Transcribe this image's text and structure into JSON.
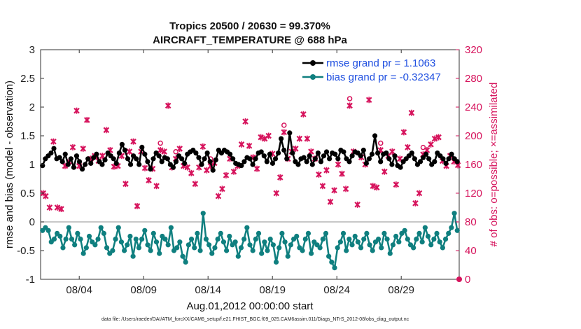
{
  "chart_data": {
    "type": "line",
    "title_line1": "Tropics 20500 / 20630 = 99.370%",
    "title_line2": "AIRCRAFT_TEMPERATURE @ 688 hPa",
    "xlabel": "Aug.01,2012 00:00:00 start",
    "ylabel_left": "rmse and bias (model - observation)",
    "ylabel_right": "# of obs: o=possible; ×=assimilated",
    "xlim": [
      0,
      32.5
    ],
    "ylim_left": [
      -1,
      3
    ],
    "ylim_right": [
      0,
      320
    ],
    "x_ticks": [
      {
        "x": 3,
        "label": "08/04"
      },
      {
        "x": 8,
        "label": "08/09"
      },
      {
        "x": 13,
        "label": "08/14"
      },
      {
        "x": 18,
        "label": "08/19"
      },
      {
        "x": 23,
        "label": "08/24"
      },
      {
        "x": 28,
        "label": "08/29"
      }
    ],
    "y_ticks_left": [
      "-1",
      "-0.5",
      "0",
      "0.5",
      "1",
      "1.5",
      "2",
      "2.5",
      "3"
    ],
    "y_ticks_right": [
      "0",
      "40",
      "80",
      "120",
      "160",
      "200",
      "240",
      "280",
      "320"
    ],
    "legend": [
      {
        "name": "rmse grand pr = 1.1063",
        "color": "#000000"
      },
      {
        "name": "bias grand pr = -0.32347",
        "color": "#0f7f7f"
      }
    ],
    "colors": {
      "rmse": "#000000",
      "bias": "#0f7f7f",
      "obs": "#d6135c",
      "zero_line": "#b5b5b5"
    },
    "rmse": [
      0.98,
      1.1,
      1.15,
      1.2,
      1.28,
      1.1,
      1.12,
      1.05,
      1.18,
      1.0,
      1.1,
      0.95,
      1.15,
      1.05,
      0.92,
      1.0,
      1.1,
      1.02,
      1.12,
      1.18,
      1.05,
      1.0,
      1.08,
      1.2,
      1.15,
      1.1,
      1.02,
      1.2,
      1.35,
      1.25,
      1.1,
      1.0,
      1.15,
      1.1,
      1.0,
      1.3,
      1.18,
      1.05,
      0.92,
      1.1,
      1.2,
      1.15,
      1.05,
      1.12,
      1.1,
      1.0,
      0.95,
      1.05,
      1.15,
      1.1,
      1.02,
      1.18,
      1.22,
      1.25,
      1.2,
      1.12,
      1.0,
      1.1,
      1.2,
      1.05,
      0.9,
      1.08,
      1.25,
      1.2,
      1.25,
      1.22,
      1.18,
      1.1,
      1.02,
      1.0,
      0.98,
      1.05,
      1.12,
      1.1,
      1.0,
      1.1,
      1.2,
      1.22,
      1.15,
      1.05,
      1.18,
      1.02,
      1.1,
      1.2,
      1.45,
      1.25,
      1.1,
      1.55,
      1.2,
      1.05,
      1.0,
      1.1,
      1.12,
      1.05,
      1.15,
      1.0,
      1.1,
      1.2,
      1.05,
      1.15,
      1.22,
      1.1,
      1.2,
      1.18,
      1.1,
      1.25,
      1.22,
      1.1,
      1.05,
      1.15,
      1.22,
      1.2,
      1.15,
      1.25,
      1.02,
      1.1,
      1.18,
      1.5,
      1.2,
      1.05,
      1.18,
      1.2,
      1.1,
      1.0,
      1.15,
      0.98,
      0.95,
      1.05,
      1.1,
      1.15,
      1.2,
      1.1,
      1.0,
      1.05,
      1.12,
      1.18,
      1.1,
      1.0,
      1.05,
      1.2,
      1.15,
      1.1,
      1.02,
      1.1,
      1.18,
      1.1,
      1.05
    ],
    "bias": [
      -0.15,
      -0.1,
      -0.15,
      -0.35,
      -0.3,
      -0.2,
      -0.25,
      -0.45,
      -0.3,
      -0.1,
      -0.3,
      -0.4,
      -0.2,
      -0.3,
      -0.55,
      -0.45,
      -0.25,
      -0.35,
      -0.4,
      -0.3,
      -0.1,
      -0.2,
      -0.45,
      -0.55,
      -0.5,
      -0.3,
      -0.1,
      -0.35,
      -0.5,
      -0.4,
      -0.25,
      -0.6,
      -0.3,
      -0.45,
      -0.3,
      -0.15,
      -0.4,
      -0.5,
      -0.2,
      -0.35,
      -0.55,
      -0.25,
      -0.3,
      -0.4,
      -0.1,
      -0.5,
      -0.45,
      -0.35,
      -0.6,
      -0.7,
      -0.4,
      -0.3,
      -0.45,
      -0.2,
      -0.5,
      0.15,
      -0.3,
      -0.4,
      -0.55,
      -0.45,
      -0.3,
      -0.2,
      -0.35,
      -0.5,
      -0.25,
      -0.4,
      -0.35,
      -0.6,
      -0.45,
      -0.3,
      -0.1,
      -0.4,
      -0.5,
      -0.3,
      -0.2,
      -0.55,
      -0.35,
      -0.5,
      -0.3,
      -0.4,
      -0.7,
      -0.45,
      -0.2,
      -0.35,
      -0.6,
      -0.4,
      -0.3,
      -0.25,
      -0.45,
      -0.5,
      -0.3,
      -0.2,
      -0.55,
      -0.35,
      -0.4,
      -0.45,
      -0.3,
      -0.2,
      -0.6,
      -0.7,
      -0.8,
      -0.45,
      -0.35,
      -0.2,
      -0.5,
      -0.3,
      -0.4,
      -0.25,
      -0.35,
      -0.45,
      -0.3,
      -0.2,
      -0.4,
      -0.5,
      -0.35,
      -0.3,
      -0.45,
      -0.2,
      -0.3,
      -0.55,
      -0.4,
      -0.25,
      -0.35,
      -0.2,
      -0.15,
      -0.3,
      -0.4,
      -0.45,
      -0.3,
      -0.2,
      -0.35,
      -0.1,
      -0.25,
      -0.4,
      -0.3,
      -0.2,
      -0.35,
      -0.45,
      -0.3,
      -0.2,
      -0.1,
      0.15,
      -0.15
    ],
    "obs_assimilated": [
      [
        0.2,
        120
      ],
      [
        0.4,
        116
      ],
      [
        0.7,
        100
      ],
      [
        1.0,
        192
      ],
      [
        1.3,
        100
      ],
      [
        1.6,
        98
      ],
      [
        1.9,
        158
      ],
      [
        2.2,
        164
      ],
      [
        2.5,
        184
      ],
      [
        2.8,
        235
      ],
      [
        3.0,
        158
      ],
      [
        3.3,
        182
      ],
      [
        3.6,
        222
      ],
      [
        3.9,
        168
      ],
      [
        4.2,
        172
      ],
      [
        4.5,
        165
      ],
      [
        4.8,
        172
      ],
      [
        5.1,
        208
      ],
      [
        5.4,
        180
      ],
      [
        5.7,
        157
      ],
      [
        6.0,
        158
      ],
      [
        6.3,
        172
      ],
      [
        6.6,
        133
      ],
      [
        6.9,
        178
      ],
      [
        7.2,
        192
      ],
      [
        7.5,
        102
      ],
      [
        7.8,
        178
      ],
      [
        8.1,
        155
      ],
      [
        8.4,
        138
      ],
      [
        8.7,
        154
      ],
      [
        9.0,
        130
      ],
      [
        9.3,
        180
      ],
      [
        9.6,
        178
      ],
      [
        9.9,
        242
      ],
      [
        10.2,
        156
      ],
      [
        10.5,
        168
      ],
      [
        10.8,
        182
      ],
      [
        11.1,
        158
      ],
      [
        11.4,
        156
      ],
      [
        11.7,
        148
      ],
      [
        12.0,
        133
      ],
      [
        12.3,
        156
      ],
      [
        12.6,
        185
      ],
      [
        12.9,
        152
      ],
      [
        13.2,
        158
      ],
      [
        13.5,
        162
      ],
      [
        13.8,
        116
      ],
      [
        14.1,
        126
      ],
      [
        14.4,
        145
      ],
      [
        14.7,
        168
      ],
      [
        15.0,
        150
      ],
      [
        15.3,
        158
      ],
      [
        15.6,
        188
      ],
      [
        15.9,
        220
      ],
      [
        16.2,
        186
      ],
      [
        16.5,
        170
      ],
      [
        16.8,
        154
      ],
      [
        17.1,
        198
      ],
      [
        17.4,
        196
      ],
      [
        17.7,
        200
      ],
      [
        18.0,
        175
      ],
      [
        18.3,
        120
      ],
      [
        18.6,
        142
      ],
      [
        18.9,
        205
      ],
      [
        19.2,
        168
      ],
      [
        19.5,
        178
      ],
      [
        19.8,
        182
      ],
      [
        20.1,
        196
      ],
      [
        20.4,
        230
      ],
      [
        20.7,
        196
      ],
      [
        21.0,
        178
      ],
      [
        21.3,
        168
      ],
      [
        21.6,
        146
      ],
      [
        21.9,
        130
      ],
      [
        22.2,
        152
      ],
      [
        22.5,
        108
      ],
      [
        22.8,
        124
      ],
      [
        23.1,
        160
      ],
      [
        23.4,
        147
      ],
      [
        23.7,
        126
      ],
      [
        24.0,
        242
      ],
      [
        24.3,
        178
      ],
      [
        24.6,
        104
      ],
      [
        24.9,
        170
      ],
      [
        25.2,
        160
      ],
      [
        25.5,
        250
      ],
      [
        25.8,
        130
      ],
      [
        26.1,
        128
      ],
      [
        26.4,
        180
      ],
      [
        26.7,
        150
      ],
      [
        27.0,
        172
      ],
      [
        27.3,
        178
      ],
      [
        27.6,
        132
      ],
      [
        27.9,
        168
      ],
      [
        28.2,
        205
      ],
      [
        28.5,
        184
      ],
      [
        28.8,
        232
      ],
      [
        29.1,
        106
      ],
      [
        29.4,
        120
      ],
      [
        29.7,
        174
      ],
      [
        30.0,
        180
      ],
      [
        30.3,
        188
      ],
      [
        30.6,
        196
      ],
      [
        30.9,
        198
      ],
      [
        31.2,
        165
      ],
      [
        31.5,
        158
      ],
      [
        31.8,
        172
      ],
      [
        32.1,
        164
      ],
      [
        32.4,
        159
      ]
    ],
    "obs_possible": [
      [
        9.3,
        180
      ],
      [
        10.5,
        168
      ],
      [
        13.2,
        158
      ],
      [
        18.9,
        205
      ],
      [
        24.0,
        242
      ],
      [
        26.4,
        180
      ],
      [
        29.7,
        174
      ]
    ]
  }
}
